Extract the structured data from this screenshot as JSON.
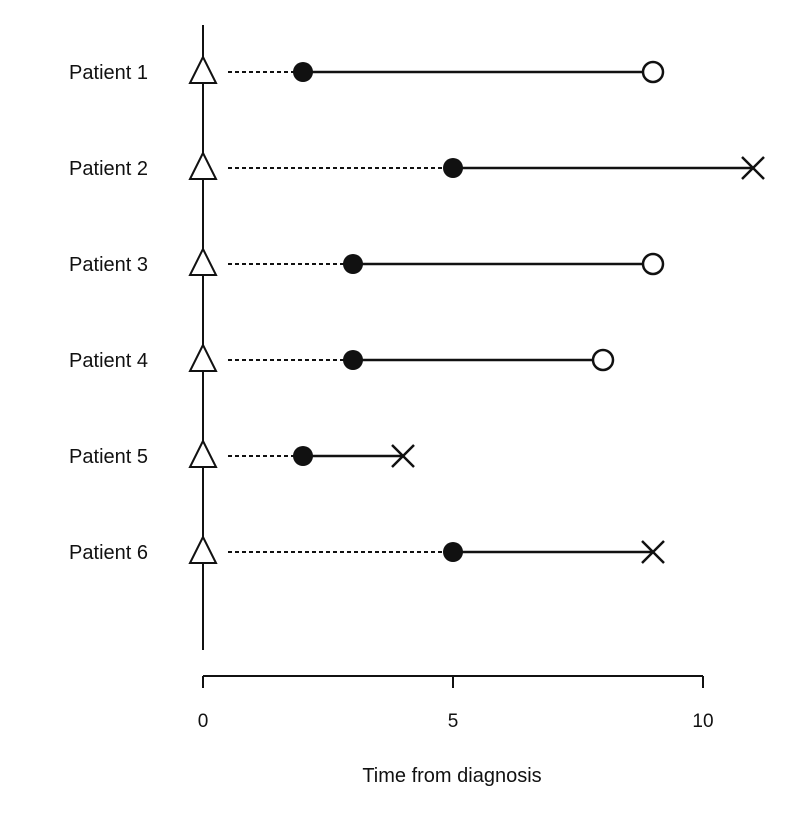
{
  "chart_data": {
    "type": "scatter",
    "title": "",
    "xlabel": "Time from diagnosis",
    "ylabel": "",
    "xlim": [
      0,
      11
    ],
    "xticks": [
      0,
      5,
      10
    ],
    "grid": false,
    "legend": "none",
    "colors": {
      "ink": "#111111",
      "background": "#ffffff"
    },
    "patients": [
      {
        "label": "Patient 1",
        "diagnosis": 0,
        "entry": 2,
        "end": 9,
        "event": "censored"
      },
      {
        "label": "Patient 2",
        "diagnosis": 0,
        "entry": 5,
        "end": 11,
        "event": "death"
      },
      {
        "label": "Patient 3",
        "diagnosis": 0,
        "entry": 3,
        "end": 9,
        "event": "censored"
      },
      {
        "label": "Patient 4",
        "diagnosis": 0,
        "entry": 3,
        "end": 8,
        "event": "censored"
      },
      {
        "label": "Patient 5",
        "diagnosis": 0,
        "entry": 2,
        "end": 4,
        "event": "death"
      },
      {
        "label": "Patient 6",
        "diagnosis": 0,
        "entry": 5,
        "end": 9,
        "event": "death"
      }
    ]
  }
}
